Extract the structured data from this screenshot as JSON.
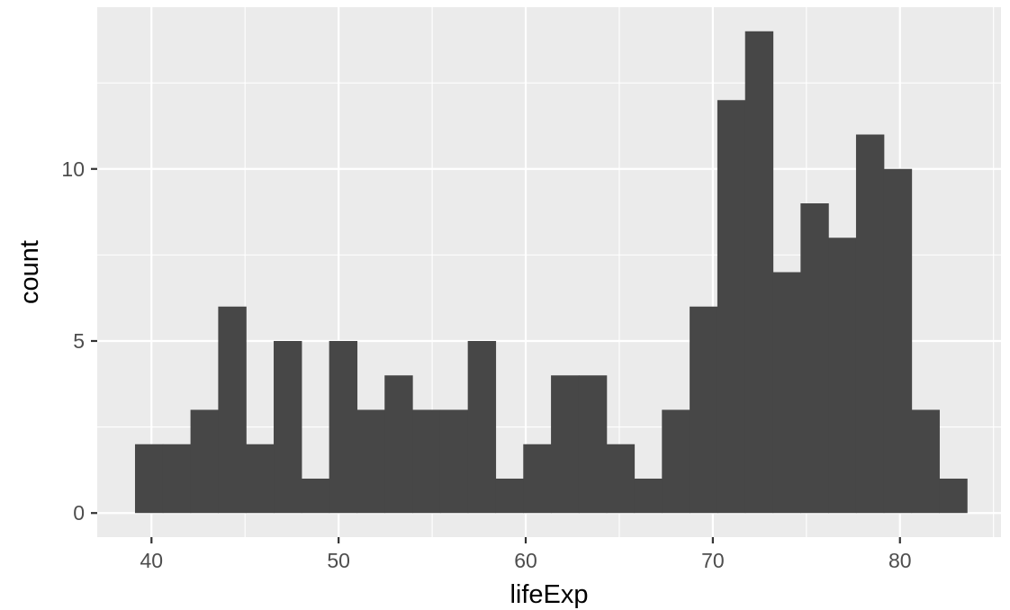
{
  "chart_data": {
    "type": "histogram",
    "title": "",
    "xlabel": "lifeExp",
    "ylabel": "count",
    "xlim": [
      37.1,
      85.4
    ],
    "ylim": [
      -0.7,
      14.7
    ],
    "x_ticks": [
      40,
      50,
      60,
      70,
      80
    ],
    "x_tick_labels": [
      "40",
      "50",
      "60",
      "70",
      "80"
    ],
    "y_ticks": [
      0,
      5,
      10
    ],
    "y_tick_labels": [
      "0",
      "5",
      "10"
    ],
    "x_minor_ticks": [
      45,
      55,
      65,
      75,
      85
    ],
    "y_minor_ticks": [
      2.5,
      7.5,
      12.5
    ],
    "grid": true,
    "bin_start": 39.12,
    "bin_width": 1.482,
    "counts": [
      2,
      2,
      3,
      6,
      2,
      5,
      1,
      5,
      3,
      4,
      3,
      3,
      5,
      1,
      2,
      4,
      4,
      2,
      1,
      3,
      6,
      12,
      14,
      7,
      9,
      8,
      11,
      10,
      3,
      1
    ],
    "colors": {
      "bar": "#474747",
      "panel": "#EBEBEB",
      "grid": "#FFFFFF",
      "text": "#4D4D4D"
    }
  }
}
